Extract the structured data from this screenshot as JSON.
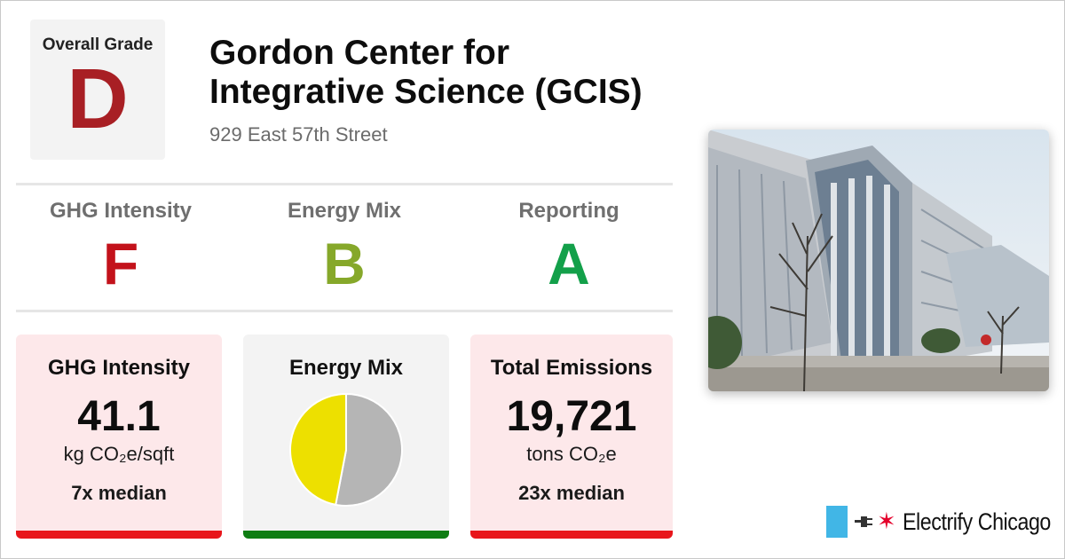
{
  "overall": {
    "label": "Overall Grade",
    "grade": "D",
    "color": "#a81f24"
  },
  "building": {
    "name_line1": "Gordon Center for",
    "name_line2": "Integrative Science (GCIS)",
    "address": "929 East 57th Street"
  },
  "sub_grades": [
    {
      "label": "GHG Intensity",
      "grade": "F",
      "color": "#c3121b"
    },
    {
      "label": "Energy Mix",
      "grade": "B",
      "color": "#86a82a"
    },
    {
      "label": "Reporting",
      "grade": "A",
      "color": "#13a04a"
    }
  ],
  "cards": {
    "ghg": {
      "title": "GHG Intensity",
      "value": "41.1",
      "unit": "kg CO₂e/sqft",
      "median": "7x median",
      "bg": "#fde8ea",
      "bar": "#e8161b"
    },
    "mix": {
      "title": "Energy Mix",
      "bg": "#f3f3f3",
      "bar": "#0e7d13"
    },
    "emissions": {
      "title": "Total Emissions",
      "value": "19,721",
      "unit": "tons CO₂e",
      "median": "23x median",
      "bg": "#fde8ea",
      "bar": "#e8161b"
    }
  },
  "chart_data": {
    "type": "pie",
    "slices": [
      {
        "value": 0.53,
        "color": "#b5b5b5",
        "icon": "gray-slice"
      },
      {
        "value": 0.47,
        "color": "#ede000",
        "icon": "yellow-slice"
      }
    ]
  },
  "photo": {
    "icon": "building-photo"
  },
  "brand": {
    "name": "Electrify Chicago",
    "flag_color": "#41b6e6",
    "star_color": "#e4002b"
  }
}
